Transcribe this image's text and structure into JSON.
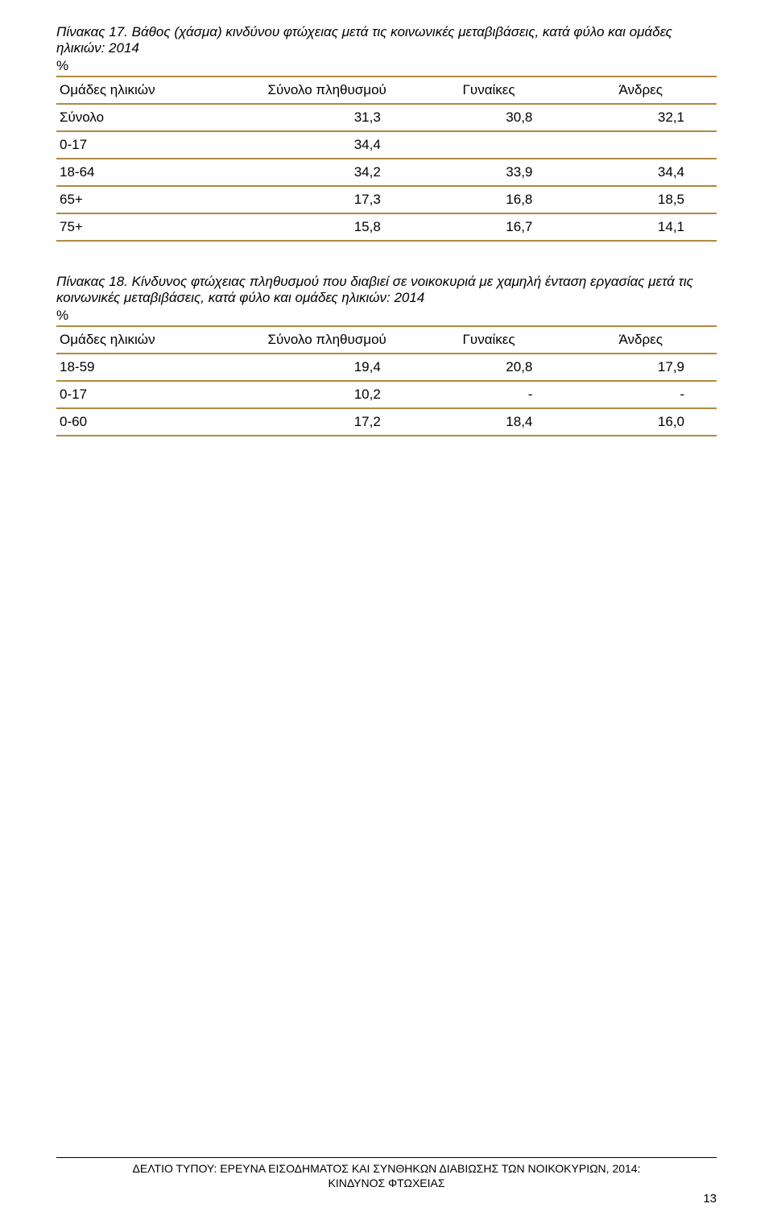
{
  "colors": {
    "rule": "#b08a3f",
    "text": "#000000",
    "background": "#ffffff"
  },
  "table17": {
    "title_lead": "Πίνακας 17.",
    "title_rest": " Βάθος (χάσμα) κινδύνου φτώχειας μετά τις κοινωνικές μεταβιβάσεις, κατά φύλο και ομάδες ηλικιών: 2014",
    "percent": "%",
    "columns": [
      "Ομάδες ηλικιών",
      "Σύνολο πληθυσμού",
      "Γυναίκες",
      "Άνδρες"
    ],
    "rows": [
      {
        "label": "Σύνολο",
        "c1": "31,3",
        "c2": "30,8",
        "c3": "32,1"
      },
      {
        "label": "0-17",
        "c1": "34,4",
        "c2": "",
        "c3": ""
      },
      {
        "label": "18-64",
        "c1": "34,2",
        "c2": "33,9",
        "c3": "34,4"
      },
      {
        "label": "65+",
        "c1": "17,3",
        "c2": "16,8",
        "c3": "18,5"
      },
      {
        "label": "75+",
        "c1": "15,8",
        "c2": "16,7",
        "c3": "14,1"
      }
    ]
  },
  "table18": {
    "title_lead": "Πίνακας 18.",
    "title_rest": " Κίνδυνος φτώχειας πληθυσμού που διαβιεί σε νοικοκυριά με χαμηλή ένταση εργασίας μετά τις κοινωνικές μεταβιβάσεις, κατά φύλο και ομάδες ηλικιών: 2014",
    "percent": "%",
    "columns": [
      "Ομάδες ηλικιών",
      "Σύνολο πληθυσμού",
      "Γυναίκες",
      "Άνδρες"
    ],
    "rows": [
      {
        "label": "18-59",
        "c1": "19,4",
        "c2": "20,8",
        "c3": "17,9"
      },
      {
        "label": "0-17",
        "c1": "10,2",
        "c2": "-",
        "c3": "-"
      },
      {
        "label": "0-60",
        "c1": "17,2",
        "c2": "18,4",
        "c3": "16,0"
      }
    ]
  },
  "footer": {
    "line1": "ΔΕΛΤΙΟ ΤΥΠΟΥ:  ΕΡΕΥΝΑ ΕΙΣΟΔΗΜΑΤΟΣ ΚΑΙ ΣΥΝΘΗΚΩΝ ΔΙΑΒΙΩΣΗΣ ΤΩΝ ΝΟΙΚΟΚΥΡΙΩΝ, 2014:",
    "line2": "ΚΙΝΔΥΝΟΣ ΦΤΩΧΕΙΑΣ",
    "page": "13"
  }
}
